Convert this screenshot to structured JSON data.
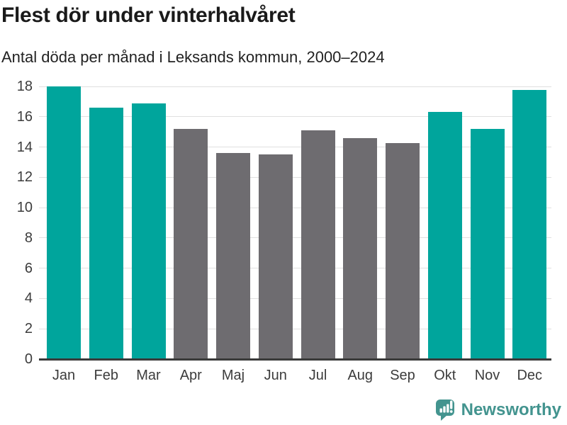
{
  "header": {
    "title": "Flest dör under vinterhalvåret",
    "subtitle": "Antal döda per månad i Leksands kommun, 2000–2024"
  },
  "chart_data": {
    "type": "bar",
    "title": "Flest dör under vinterhalvåret",
    "subtitle": "Antal döda per månad i Leksands kommun, 2000–2024",
    "categories": [
      "Jan",
      "Feb",
      "Mar",
      "Apr",
      "Maj",
      "Jun",
      "Jul",
      "Aug",
      "Sep",
      "Okt",
      "Nov",
      "Dec"
    ],
    "values": [
      18.0,
      16.6,
      16.9,
      15.2,
      13.6,
      13.5,
      15.1,
      14.6,
      14.25,
      16.3,
      15.2,
      17.75
    ],
    "bar_groups": [
      "winter",
      "winter",
      "winter",
      "summer",
      "summer",
      "summer",
      "summer",
      "summer",
      "summer",
      "winter",
      "winter",
      "winter"
    ],
    "palette": {
      "winter": "#00a59c",
      "summer": "#6e6c70"
    },
    "xlabel": "",
    "ylabel": "",
    "ylim": [
      0,
      18
    ],
    "ytick_step": 2,
    "grid": "horizontal",
    "gridline_color": "#e0e0e0",
    "axis_color": "#3a3a3a",
    "legend": "none",
    "note": "winter half-year months (Okt–Mar) highlighted in teal, summer months (Apr–Sep) gray"
  },
  "footer": {
    "brand": "Newsworthy",
    "brand_color": "#43948f",
    "logo_icon": "bar-chart-speech-bubble-icon"
  }
}
